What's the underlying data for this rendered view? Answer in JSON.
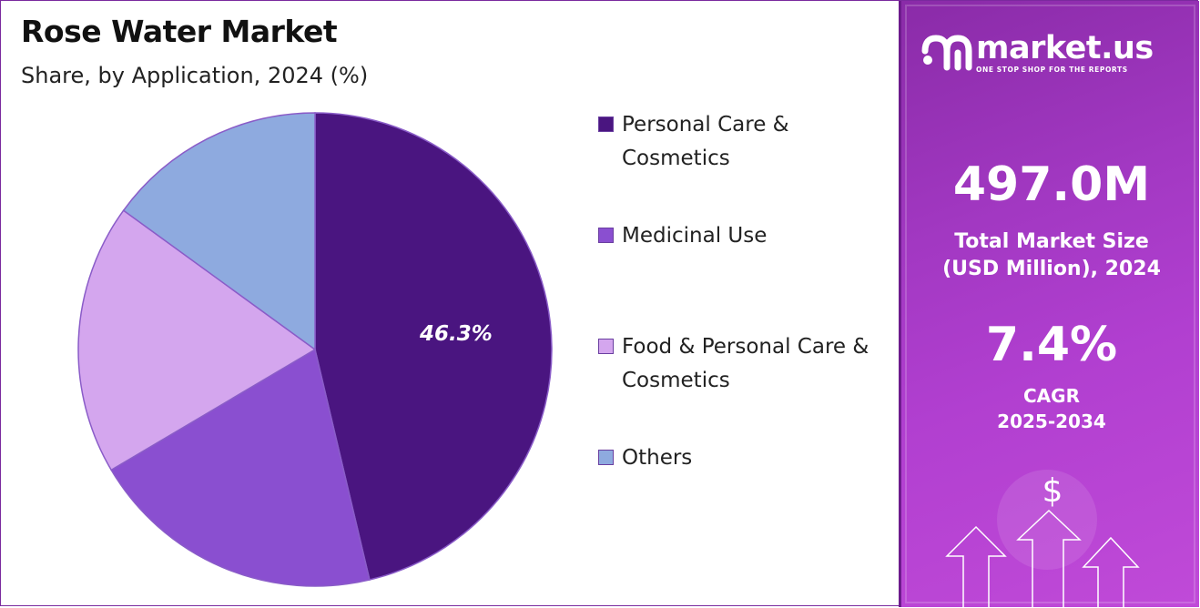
{
  "title": "Rose Water Market",
  "subtitle": "Share, by Application, 2024 (%)",
  "chart_data": {
    "type": "pie",
    "title": "Rose Water Market",
    "subtitle": "Share, by Application, 2024 (%)",
    "categories": [
      "Personal Care & Cosmetics",
      "Medicinal Use",
      "Food & Personal Care & Cosmetics",
      "Others"
    ],
    "values": [
      46.3,
      20.2,
      18.5,
      15.0
    ],
    "data_labels": [
      "46.3%",
      "",
      "",
      ""
    ],
    "colors": [
      "#4a1580",
      "#8a4fd0",
      "#d4a6ee",
      "#8eaadf"
    ],
    "legend_position": "right"
  },
  "legend": [
    {
      "label": "Personal Care & Cosmetics",
      "color": "#4a1580"
    },
    {
      "label": "Medicinal Use",
      "color": "#8a4fd0"
    },
    {
      "label": "Food & Personal Care & Cosmetics",
      "color": "#d4a6ee"
    },
    {
      "label": "Others",
      "color": "#8eaadf"
    }
  ],
  "brand": {
    "name": "market.us",
    "tagline": "ONE STOP SHOP FOR THE REPORTS"
  },
  "stats": {
    "market_size_value": "497.0M",
    "market_size_label_line1": "Total Market Size",
    "market_size_label_line2": "(USD Million), 2024",
    "cagr_value": "7.4%",
    "cagr_label_line1": "CAGR",
    "cagr_label_line2": "2025-2034"
  },
  "icons": {
    "currency": "$",
    "logo": "market-us-logo-icon",
    "arrows": "up-arrow-icon"
  }
}
